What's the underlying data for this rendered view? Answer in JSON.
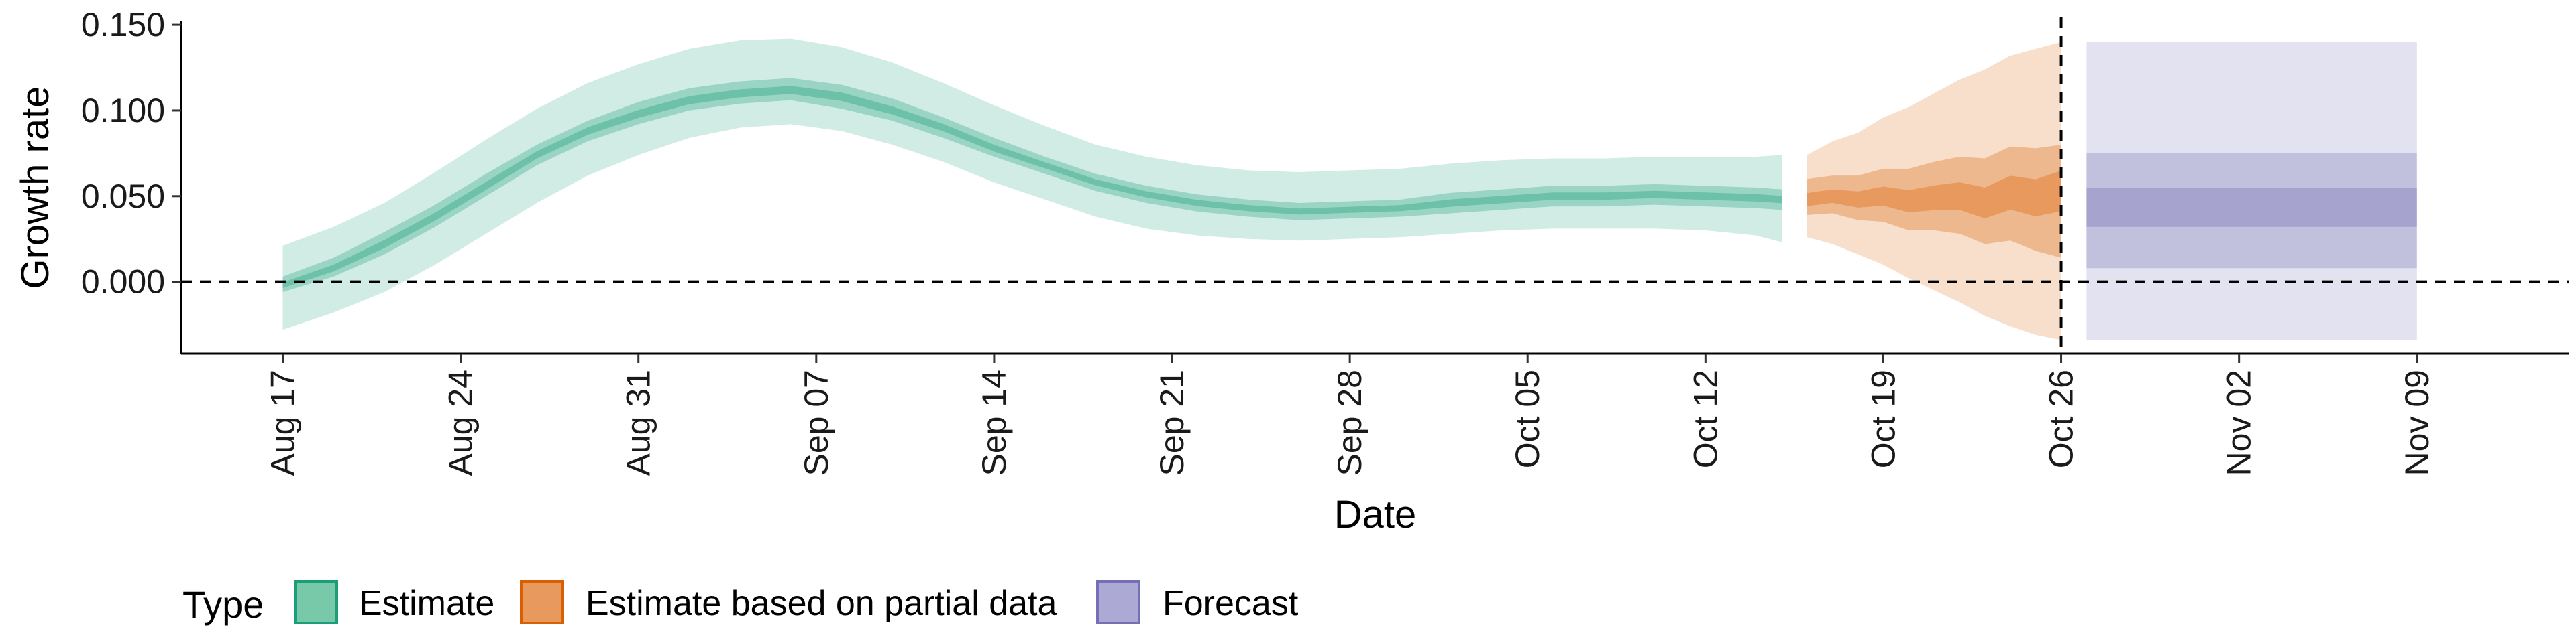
{
  "chart_data": {
    "type": "area",
    "xlabel": "Date",
    "ylabel": "Growth rate",
    "x_range": [
      "2020-08-13",
      "2020-11-15"
    ],
    "y_range": [
      -0.042,
      0.152
    ],
    "y_ticks": [
      0.0,
      0.05,
      0.1,
      0.15
    ],
    "y_tick_labels": [
      "0.000",
      "0.050",
      "0.100",
      "0.150"
    ],
    "x_ticks": [
      "2020-08-17",
      "2020-08-24",
      "2020-08-31",
      "2020-09-07",
      "2020-09-14",
      "2020-09-21",
      "2020-09-28",
      "2020-10-05",
      "2020-10-12",
      "2020-10-19",
      "2020-10-26",
      "2020-11-02",
      "2020-11-09"
    ],
    "x_tick_labels": [
      "Aug 17",
      "Aug 24",
      "Aug 31",
      "Sep 07",
      "Sep 14",
      "Sep 21",
      "Sep 28",
      "Oct 05",
      "Oct 12",
      "Oct 19",
      "Oct 26",
      "Nov 02",
      "Nov 09"
    ],
    "reference_hline": 0.0,
    "reference_vline": "2020-10-26",
    "legend": {
      "title": "Type",
      "placement": "bottom-left",
      "items": [
        {
          "label": "Estimate",
          "color": "#1b9e77"
        },
        {
          "label": "Estimate based on partial data",
          "color": "#d95f02"
        },
        {
          "label": "Forecast",
          "color": "#7570b3"
        }
      ]
    },
    "series": [
      {
        "type_label": "Estimate",
        "fill": "#1b9e77",
        "x": [
          "2020-08-17",
          "2020-08-19",
          "2020-08-21",
          "2020-08-23",
          "2020-08-25",
          "2020-08-27",
          "2020-08-29",
          "2020-08-31",
          "2020-09-02",
          "2020-09-04",
          "2020-09-06",
          "2020-09-08",
          "2020-09-10",
          "2020-09-12",
          "2020-09-14",
          "2020-09-16",
          "2020-09-18",
          "2020-09-20",
          "2020-09-22",
          "2020-09-24",
          "2020-09-26",
          "2020-09-28",
          "2020-09-30",
          "2020-10-02",
          "2020-10-04",
          "2020-10-06",
          "2020-10-08",
          "2020-10-10",
          "2020-10-12",
          "2020-10-14",
          "2020-10-15"
        ],
        "median": [
          -0.002,
          0.008,
          0.022,
          0.038,
          0.056,
          0.074,
          0.088,
          0.098,
          0.106,
          0.11,
          0.112,
          0.108,
          0.1,
          0.09,
          0.078,
          0.068,
          0.058,
          0.051,
          0.046,
          0.043,
          0.041,
          0.042,
          0.043,
          0.046,
          0.048,
          0.05,
          0.05,
          0.051,
          0.05,
          0.049,
          0.048
        ],
        "lower_50": [
          -0.006,
          0.003,
          0.016,
          0.032,
          0.05,
          0.068,
          0.082,
          0.092,
          0.1,
          0.104,
          0.106,
          0.101,
          0.094,
          0.084,
          0.073,
          0.063,
          0.053,
          0.046,
          0.041,
          0.038,
          0.036,
          0.037,
          0.038,
          0.04,
          0.042,
          0.044,
          0.044,
          0.045,
          0.044,
          0.043,
          0.042
        ],
        "upper_50": [
          0.003,
          0.014,
          0.029,
          0.045,
          0.063,
          0.08,
          0.094,
          0.105,
          0.113,
          0.117,
          0.119,
          0.115,
          0.107,
          0.096,
          0.084,
          0.073,
          0.063,
          0.056,
          0.051,
          0.048,
          0.046,
          0.047,
          0.048,
          0.052,
          0.054,
          0.056,
          0.056,
          0.057,
          0.056,
          0.055,
          0.054
        ],
        "lower_90": [
          -0.028,
          -0.018,
          -0.006,
          0.01,
          0.028,
          0.046,
          0.062,
          0.074,
          0.084,
          0.09,
          0.092,
          0.088,
          0.08,
          0.07,
          0.058,
          0.048,
          0.038,
          0.031,
          0.027,
          0.025,
          0.024,
          0.025,
          0.026,
          0.028,
          0.03,
          0.031,
          0.031,
          0.031,
          0.03,
          0.027,
          0.023
        ],
        "upper_90": [
          0.021,
          0.032,
          0.046,
          0.064,
          0.083,
          0.101,
          0.116,
          0.127,
          0.136,
          0.141,
          0.142,
          0.137,
          0.128,
          0.116,
          0.103,
          0.091,
          0.08,
          0.073,
          0.068,
          0.065,
          0.064,
          0.065,
          0.066,
          0.069,
          0.071,
          0.072,
          0.072,
          0.073,
          0.073,
          0.073,
          0.074
        ]
      },
      {
        "type_label": "Estimate based on partial data",
        "fill": "#d95f02",
        "x": [
          "2020-10-16",
          "2020-10-17",
          "2020-10-18",
          "2020-10-19",
          "2020-10-20",
          "2020-10-21",
          "2020-10-22",
          "2020-10-23",
          "2020-10-24",
          "2020-10-25",
          "2020-10-26"
        ],
        "median": [
          0.048,
          0.05,
          0.048,
          0.05,
          0.047,
          0.049,
          0.05,
          0.046,
          0.052,
          0.049,
          0.053
        ],
        "lower_50": [
          0.039,
          0.04,
          0.036,
          0.035,
          0.03,
          0.03,
          0.028,
          0.022,
          0.024,
          0.018,
          0.014
        ],
        "upper_50": [
          0.06,
          0.062,
          0.062,
          0.066,
          0.066,
          0.07,
          0.073,
          0.072,
          0.079,
          0.078,
          0.08
        ],
        "lower_90": [
          0.026,
          0.022,
          0.016,
          0.01,
          0.002,
          -0.005,
          -0.012,
          -0.02,
          -0.026,
          -0.031,
          -0.034
        ],
        "upper_90": [
          0.074,
          0.082,
          0.087,
          0.096,
          0.102,
          0.11,
          0.118,
          0.124,
          0.132,
          0.136,
          0.14
        ]
      },
      {
        "type_label": "Forecast",
        "fill": "#7570b3",
        "x": [
          "2020-10-27",
          "2020-11-09"
        ],
        "median": [
          0.044,
          0.044
        ],
        "lower_20": [
          0.032,
          0.032
        ],
        "upper_20": [
          0.055,
          0.055
        ],
        "lower_50": [
          0.008,
          0.008
        ],
        "upper_50": [
          0.075,
          0.075
        ],
        "lower_90": [
          -0.034,
          -0.034
        ],
        "upper_90": [
          0.14,
          0.14
        ]
      }
    ]
  }
}
